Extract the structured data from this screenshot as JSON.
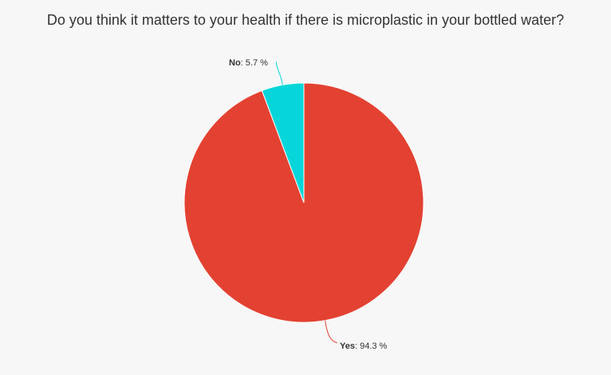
{
  "chart_data": {
    "type": "pie",
    "title": "Do you think it matters to your health if there is microplastic in your bottled water?",
    "slices": [
      {
        "name": "Yes",
        "value": 94.3,
        "display": ": 94.3 %",
        "color": "#e34232",
        "label_position": "bottom"
      },
      {
        "name": "No",
        "value": 5.7,
        "display": ": 5.7 %",
        "color": "#06d6d9",
        "label_position": "top-left"
      }
    ]
  },
  "colors": {
    "background": "#f7f7f7",
    "yes": "#e34232",
    "no": "#06d6d9"
  }
}
